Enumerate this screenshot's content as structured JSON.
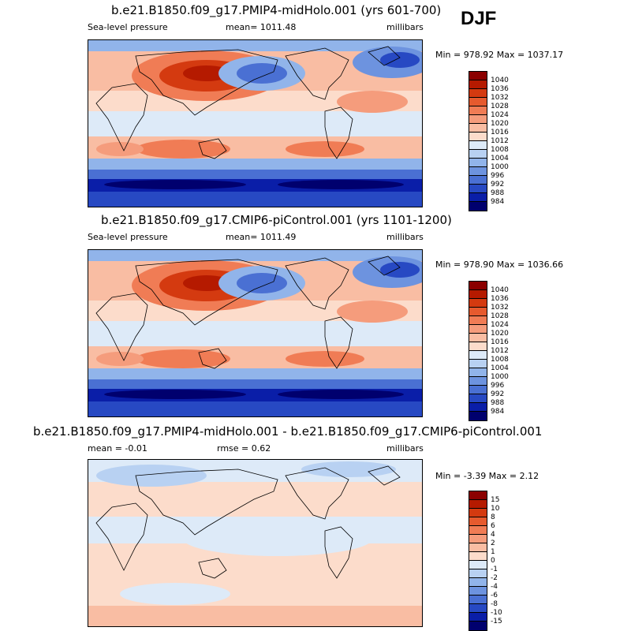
{
  "season": "DJF",
  "panels": [
    {
      "title": "b.e21.B1850.f09_g17.PMIP4-midHolo.001 (yrs 601-700)",
      "left_label": "Sea-level pressure",
      "center_label": "mean= 1011.48",
      "right_label": "millibars",
      "minmax_label": "Min = 978.92 Max = 1037.17",
      "colorbar_labels": [
        "1040",
        "1036",
        "1032",
        "1028",
        "1024",
        "1020",
        "1016",
        "1012",
        "1008",
        "1004",
        "1000",
        "996",
        "992",
        "988",
        "984"
      ],
      "colorbar_colors": [
        "#8b0000",
        "#b51a00",
        "#d43a10",
        "#e65a2e",
        "#f07c55",
        "#f59c7c",
        "#f9bda3",
        "#fcdccb",
        "#ddeaf8",
        "#b8d1f2",
        "#91b4ea",
        "#6d93df",
        "#4a70d3",
        "#2749c3",
        "#0a1ea8",
        "#00006e"
      ],
      "map_field": "slp"
    },
    {
      "title": "b.e21.B1850.f09_g17.CMIP6-piControl.001 (yrs 1101-1200)",
      "left_label": "Sea-level pressure",
      "center_label": "mean= 1011.49",
      "right_label": "millibars",
      "minmax_label": "Min = 978.90 Max = 1036.66",
      "colorbar_labels": [
        "1040",
        "1036",
        "1032",
        "1028",
        "1024",
        "1020",
        "1016",
        "1012",
        "1008",
        "1004",
        "1000",
        "996",
        "992",
        "988",
        "984"
      ],
      "colorbar_colors": [
        "#8b0000",
        "#b51a00",
        "#d43a10",
        "#e65a2e",
        "#f07c55",
        "#f59c7c",
        "#f9bda3",
        "#fcdccb",
        "#ddeaf8",
        "#b8d1f2",
        "#91b4ea",
        "#6d93df",
        "#4a70d3",
        "#2749c3",
        "#0a1ea8",
        "#00006e"
      ],
      "map_field": "slp"
    },
    {
      "title": "b.e21.B1850.f09_g17.PMIP4-midHolo.001 - b.e21.B1850.f09_g17.CMIP6-piControl.001",
      "left_label": "mean =  -0.01",
      "center_label": "rmse =   0.62",
      "right_label": "millibars",
      "minmax_label": "Min =  -3.39 Max =   2.12",
      "colorbar_labels": [
        "15",
        "10",
        "8",
        "6",
        "4",
        "2",
        "1",
        "0",
        "-1",
        "-2",
        "-4",
        "-6",
        "-8",
        "-10",
        "-15"
      ],
      "colorbar_colors": [
        "#8b0000",
        "#b51a00",
        "#d43a10",
        "#e65a2e",
        "#f07c55",
        "#f59c7c",
        "#f9bda3",
        "#fcdccb",
        "#ddeaf8",
        "#b8d1f2",
        "#91b4ea",
        "#6d93df",
        "#4a70d3",
        "#2749c3",
        "#0a1ea8",
        "#00006e"
      ],
      "map_field": "diff"
    }
  ]
}
